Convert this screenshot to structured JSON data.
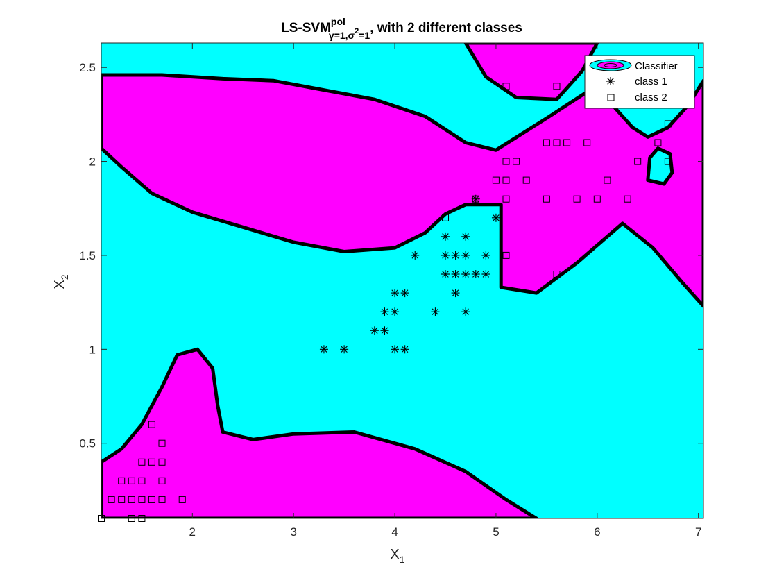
{
  "title": {
    "main": "LS-SVM",
    "sup": "pol",
    "sub": "γ=1,σ",
    "sub_sup": "2",
    "sub_after": "=1",
    "rest": ", with 2 different classes"
  },
  "axes": {
    "xlabel": "X",
    "xlabel_sub": "1",
    "ylabel": "X",
    "ylabel_sub": "2"
  },
  "colors": {
    "class1_region": "#00ffff",
    "class2_region": "#ff00ff",
    "boundary": "#000000",
    "markers": "#000000"
  },
  "chart_data": {
    "type": "scatter",
    "title": "LS-SVM pol γ=1,σ²=1, with 2 different classes",
    "xlabel": "X1",
    "ylabel": "X2",
    "xlim": [
      1.1,
      7.05
    ],
    "ylim": [
      0.1,
      2.63
    ],
    "xticks": [
      "2",
      "3",
      "4",
      "5",
      "6",
      "7"
    ],
    "xtick_values": [
      2,
      3,
      4,
      5,
      6,
      7
    ],
    "yticks": [
      "0.5",
      "1",
      "1.5",
      "2",
      "2.5"
    ],
    "ytick_values": [
      0.5,
      1,
      1.5,
      2,
      2.5
    ],
    "grid": false,
    "legend_position": "top-right",
    "legend": [
      "Classifier",
      "class 1",
      "class 2"
    ],
    "series": [
      {
        "name": "class 1",
        "marker": "asterisk",
        "points": [
          [
            3.3,
            1.0
          ],
          [
            3.5,
            1.0
          ],
          [
            4.0,
            1.0
          ],
          [
            4.1,
            1.0
          ],
          [
            3.8,
            1.1
          ],
          [
            3.9,
            1.1
          ],
          [
            3.9,
            1.2
          ],
          [
            4.0,
            1.2
          ],
          [
            4.4,
            1.2
          ],
          [
            4.7,
            1.2
          ],
          [
            4.0,
            1.3
          ],
          [
            4.1,
            1.3
          ],
          [
            4.6,
            1.3
          ],
          [
            4.5,
            1.4
          ],
          [
            4.6,
            1.4
          ],
          [
            4.7,
            1.4
          ],
          [
            4.8,
            1.4
          ],
          [
            4.9,
            1.4
          ],
          [
            4.2,
            1.5
          ],
          [
            4.5,
            1.5
          ],
          [
            4.6,
            1.5
          ],
          [
            4.7,
            1.5
          ],
          [
            4.9,
            1.5
          ],
          [
            4.5,
            1.6
          ],
          [
            4.7,
            1.6
          ],
          [
            5.0,
            1.7
          ],
          [
            4.8,
            1.8
          ]
        ]
      },
      {
        "name": "class 2",
        "marker": "square",
        "points": [
          [
            1.1,
            0.1
          ],
          [
            1.4,
            0.1
          ],
          [
            1.5,
            0.1
          ],
          [
            1.2,
            0.2
          ],
          [
            1.3,
            0.2
          ],
          [
            1.4,
            0.2
          ],
          [
            1.5,
            0.2
          ],
          [
            1.6,
            0.2
          ],
          [
            1.7,
            0.2
          ],
          [
            1.9,
            0.2
          ],
          [
            1.3,
            0.3
          ],
          [
            1.4,
            0.3
          ],
          [
            1.5,
            0.3
          ],
          [
            1.7,
            0.3
          ],
          [
            1.5,
            0.4
          ],
          [
            1.6,
            0.4
          ],
          [
            1.7,
            0.4
          ],
          [
            1.7,
            0.5
          ],
          [
            1.6,
            0.6
          ],
          [
            5.1,
            1.5
          ],
          [
            5.6,
            1.4
          ],
          [
            4.5,
            1.7
          ],
          [
            4.8,
            1.8
          ],
          [
            5.1,
            1.8
          ],
          [
            5.5,
            1.8
          ],
          [
            5.8,
            1.8
          ],
          [
            6.0,
            1.8
          ],
          [
            6.3,
            1.8
          ],
          [
            5.0,
            1.9
          ],
          [
            5.1,
            1.9
          ],
          [
            5.3,
            1.9
          ],
          [
            6.1,
            1.9
          ],
          [
            5.1,
            2.0
          ],
          [
            5.2,
            2.0
          ],
          [
            6.4,
            2.0
          ],
          [
            6.7,
            2.0
          ],
          [
            5.5,
            2.1
          ],
          [
            5.6,
            2.1
          ],
          [
            5.7,
            2.1
          ],
          [
            5.9,
            2.1
          ],
          [
            6.6,
            2.1
          ],
          [
            6.7,
            2.2
          ],
          [
            5.1,
            2.4
          ],
          [
            5.6,
            2.4
          ],
          [
            6.1,
            2.5
          ]
        ]
      }
    ],
    "regions": {
      "background_class": "class 1",
      "class2_regions": [
        {
          "name": "upper-left band",
          "polygon": [
            [
              1.1,
              2.07
            ],
            [
              1.3,
              1.97
            ],
            [
              1.6,
              1.83
            ],
            [
              2.0,
              1.73
            ],
            [
              2.5,
              1.65
            ],
            [
              3.0,
              1.57
            ],
            [
              3.5,
              1.52
            ],
            [
              4.0,
              1.54
            ],
            [
              4.3,
              1.62
            ],
            [
              4.5,
              1.72
            ],
            [
              4.7,
              1.77
            ],
            [
              5.05,
              1.77
            ],
            [
              5.05,
              1.6
            ],
            [
              5.05,
              1.33
            ],
            [
              5.4,
              1.3
            ],
            [
              5.8,
              1.46
            ],
            [
              6.25,
              1.67
            ],
            [
              6.55,
              1.54
            ],
            [
              6.85,
              1.35
            ],
            [
              7.05,
              1.23
            ],
            [
              7.05,
              2.43
            ],
            [
              6.9,
              2.3
            ],
            [
              6.7,
              2.18
            ],
            [
              6.5,
              2.13
            ],
            [
              6.35,
              2.18
            ],
            [
              6.15,
              2.3
            ],
            [
              5.9,
              2.37
            ],
            [
              5.5,
              2.23
            ],
            [
              5.0,
              2.06
            ],
            [
              4.7,
              2.1
            ],
            [
              4.3,
              2.24
            ],
            [
              3.8,
              2.33
            ],
            [
              3.2,
              2.39
            ],
            [
              2.8,
              2.43
            ],
            [
              2.3,
              2.44
            ],
            [
              1.7,
              2.46
            ],
            [
              1.1,
              2.46
            ]
          ]
        },
        {
          "name": "top-right lobe",
          "polygon": [
            [
              4.7,
              2.63
            ],
            [
              4.9,
              2.45
            ],
            [
              5.2,
              2.34
            ],
            [
              5.6,
              2.33
            ],
            [
              5.85,
              2.48
            ],
            [
              6.0,
              2.63
            ]
          ]
        },
        {
          "name": "lower-left",
          "polygon": [
            [
              1.1,
              0.1
            ],
            [
              1.1,
              0.4
            ],
            [
              1.3,
              0.47
            ],
            [
              1.5,
              0.6
            ],
            [
              1.7,
              0.8
            ],
            [
              1.85,
              0.97
            ],
            [
              2.05,
              1.0
            ],
            [
              2.2,
              0.9
            ],
            [
              2.25,
              0.7
            ],
            [
              2.3,
              0.56
            ],
            [
              2.6,
              0.52
            ],
            [
              3.0,
              0.55
            ],
            [
              3.6,
              0.56
            ],
            [
              4.2,
              0.47
            ],
            [
              4.7,
              0.35
            ],
            [
              5.1,
              0.2
            ],
            [
              5.4,
              0.1
            ]
          ]
        }
      ],
      "class1_islands": [
        {
          "name": "right small island",
          "polygon": [
            [
              6.5,
              1.9
            ],
            [
              6.52,
              2.02
            ],
            [
              6.6,
              2.07
            ],
            [
              6.72,
              2.04
            ],
            [
              6.74,
              1.94
            ],
            [
              6.66,
              1.88
            ]
          ]
        }
      ]
    }
  }
}
